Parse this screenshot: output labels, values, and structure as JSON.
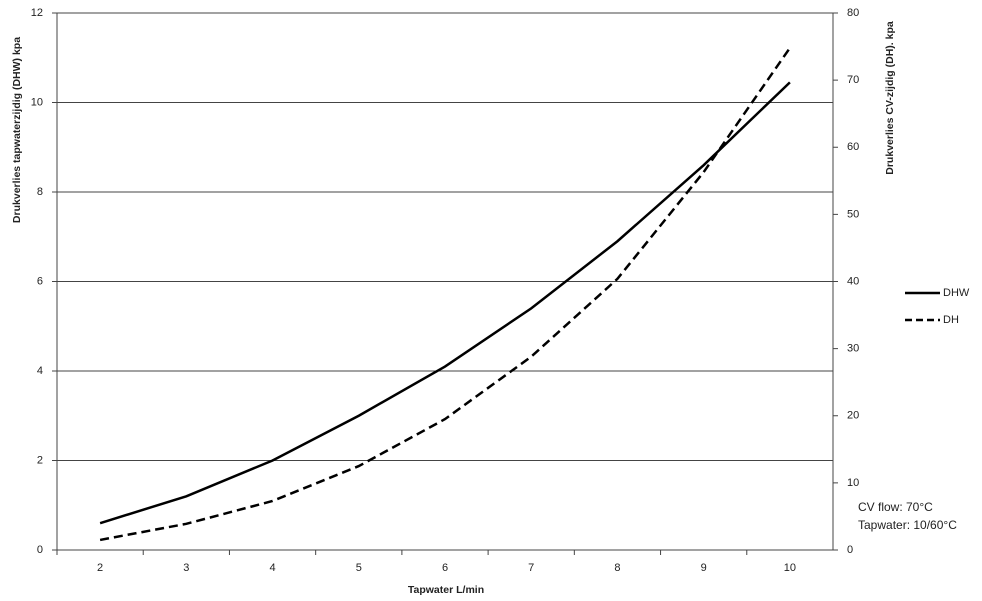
{
  "chart_data": {
    "type": "line",
    "x_label": "Tapwater  L/min",
    "y_label": "Drukverlies tapwaterzijdig (DHW)  kpa",
    "y2_label": "Drukverlies CV-zijdig (DH).  kpa",
    "categories": [
      "2",
      "3",
      "4",
      "5",
      "6",
      "7",
      "8",
      "9",
      "10"
    ],
    "series": [
      {
        "name": "DHW",
        "color": "#000000",
        "dash": "solid",
        "values": [
          0.6,
          1.2,
          2.0,
          3.0,
          4.1,
          5.4,
          6.9,
          8.6,
          10.45
        ]
      },
      {
        "name": "DH",
        "color": "#000000",
        "dash": "dashed",
        "axis": "y2",
        "values": [
          1.5,
          3.9,
          7.3,
          12.5,
          19.5,
          28.8,
          40.4,
          56.3,
          74.8
        ]
      }
    ],
    "ylim": [
      0,
      12
    ],
    "yticks": [
      0,
      2,
      4,
      6,
      8,
      10,
      12
    ],
    "y2lim": [
      0,
      80
    ],
    "y2ticks": [
      0,
      10,
      20,
      30,
      40,
      50,
      60,
      70,
      80
    ],
    "grid": true,
    "legend": "right",
    "annotations": [
      "CV flow: 70°C",
      "Tapwater: 10/60°C"
    ]
  }
}
